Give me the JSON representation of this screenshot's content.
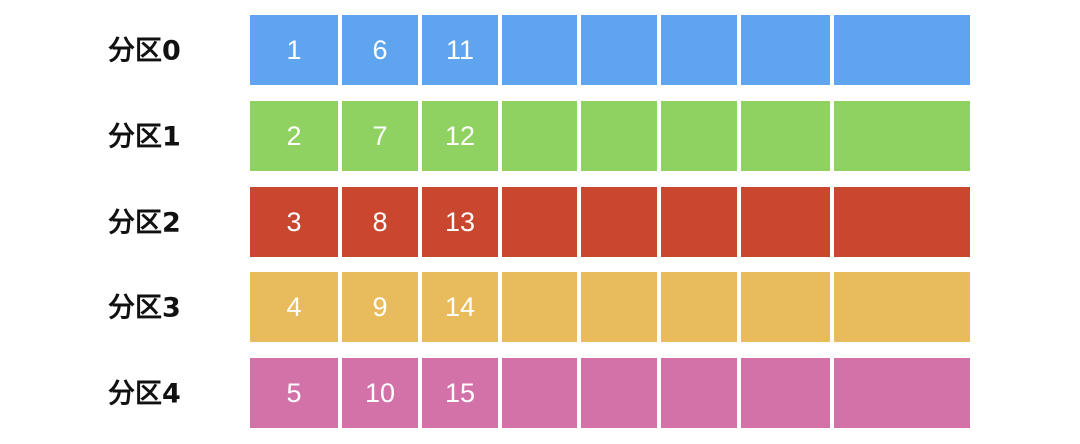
{
  "rows": [
    {
      "label": "分区0",
      "cells": [
        1,
        6,
        11
      ]
    },
    {
      "label": "分区1",
      "cells": [
        2,
        7,
        12
      ]
    },
    {
      "label": "分区2",
      "cells": [
        3,
        8,
        13
      ]
    },
    {
      "label": "分区3",
      "cells": [
        4,
        9,
        14
      ]
    },
    {
      "label": "分区4",
      "cells": [
        5,
        10,
        15
      ]
    }
  ]
}
